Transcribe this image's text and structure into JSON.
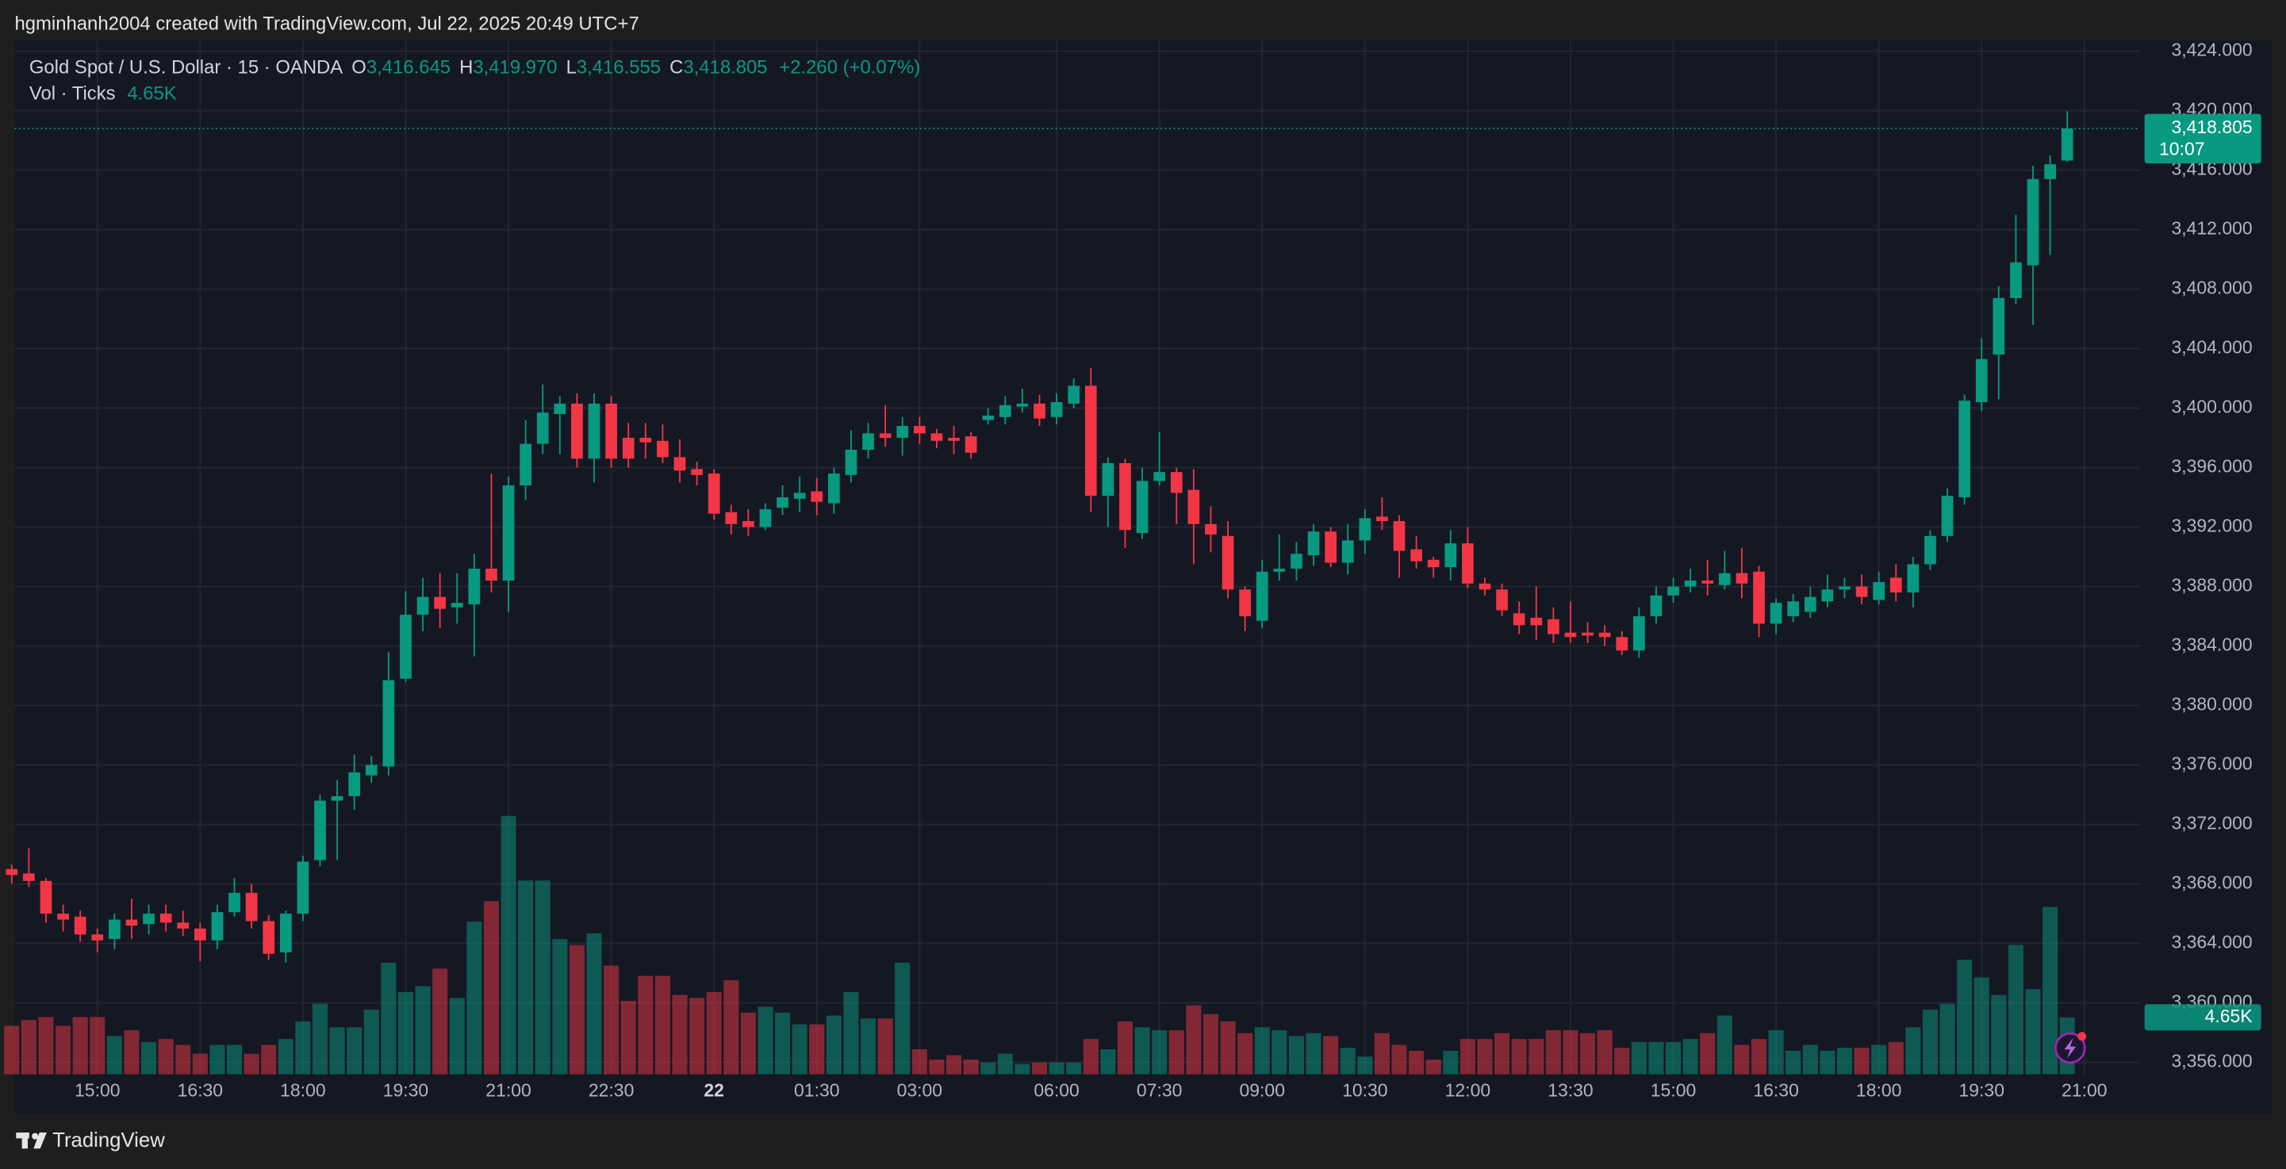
{
  "header": {
    "attribution": "hgminhanh2004 created with TradingView.com, Jul 22, 2025 20:49 UTC+7"
  },
  "footer": {
    "brand": "TradingView"
  },
  "chart_data": {
    "type": "candlestick",
    "title": "Gold Spot / U.S. Dollar · 15 · OANDA",
    "ohlc_legend": {
      "open_label": "O",
      "open": "3,416.645",
      "high_label": "H",
      "high": "3,419.970",
      "low_label": "L",
      "low": "3,416.555",
      "close_label": "C",
      "close": "3,418.805",
      "change": "+2.260 (+0.07%)"
    },
    "countdown": "10:07",
    "categories": [
      null,
      null,
      null,
      null,
      null,
      "15:00",
      null,
      null,
      null,
      null,
      null,
      "16:30",
      null,
      null,
      null,
      null,
      null,
      "18:00",
      null,
      null,
      null,
      null,
      null,
      "19:30",
      null,
      null,
      null,
      null,
      null,
      "21:00",
      null,
      null,
      null,
      null,
      null,
      "22:30",
      null,
      null,
      null,
      null,
      null,
      "22",
      null,
      null,
      null,
      null,
      null,
      "01:30",
      null,
      null,
      null,
      null,
      null,
      "03:00",
      null,
      null,
      null,
      null,
      null,
      null,
      null,
      "06:00",
      null,
      null,
      null,
      null,
      null,
      "07:30",
      null,
      null,
      null,
      null,
      null,
      "09:00",
      null,
      null,
      null,
      null,
      null,
      "10:30",
      null,
      null,
      null,
      null,
      null,
      "12:00",
      null,
      null,
      null,
      null,
      null,
      "13:30",
      null,
      null,
      null,
      null,
      null,
      "15:00",
      null,
      null,
      null,
      null,
      null,
      "16:30",
      null,
      null,
      null,
      null,
      null,
      "18:00",
      null,
      null,
      null,
      null,
      null,
      "19:30",
      null,
      null,
      null,
      null,
      null,
      "21:00"
    ],
    "open": [
      3369.0,
      3368.7,
      3368.2,
      3366.0,
      3365.8,
      3364.6,
      3364.3,
      3365.6,
      3365.3,
      3366.0,
      3365.4,
      3365.0,
      3364.2,
      3366.1,
      3367.4,
      3365.5,
      3363.4,
      3366.0,
      3369.6,
      3373.6,
      3373.9,
      3375.3,
      3375.9,
      3381.8,
      3386.1,
      3387.3,
      3386.6,
      3386.8,
      3389.2,
      3388.4,
      3394.8,
      3397.6,
      3399.6,
      3400.3,
      3396.6,
      3400.3,
      3398.0,
      3398.0,
      3397.8,
      3396.7,
      3395.9,
      3395.6,
      3393.0,
      3392.4,
      3392.0,
      3393.3,
      3393.9,
      3394.4,
      3393.6,
      3395.5,
      3397.2,
      3398.3,
      3398.0,
      3398.8,
      3398.3,
      3398.0,
      3398.1,
      3399.2,
      3399.4,
      3400.1,
      3400.3,
      3399.4,
      3400.3,
      3401.5,
      3394.1,
      3396.3,
      3391.6,
      3395.1,
      3395.7,
      3394.5,
      3392.2,
      3391.4,
      3387.8,
      3385.7,
      3389.0,
      3389.2,
      3390.1,
      3391.7,
      3389.6,
      3391.1,
      3392.7,
      3392.4,
      3390.5,
      3389.8,
      3389.3,
      3390.9,
      3388.2,
      3387.8,
      3386.2,
      3385.9,
      3385.8,
      3384.9,
      3384.9,
      3384.9,
      3384.6,
      3383.7,
      3386.0,
      3387.4,
      3388.0,
      3388.4,
      3388.1,
      3388.9,
      3389.0,
      3385.5,
      3386.0,
      3386.3,
      3387.0,
      3387.8,
      3388.0,
      3387.1,
      3388.6,
      3387.6,
      3389.5,
      3391.4,
      3394.0,
      3400.4,
      3403.6,
      3407.4,
      3409.6,
      3415.4,
      3416.645,
      null
    ],
    "high": [
      3369.3,
      3370.4,
      3368.4,
      3366.6,
      3366.2,
      3365.0,
      3366.0,
      3367.0,
      3366.6,
      3366.6,
      3366.2,
      3365.4,
      3366.6,
      3368.4,
      3368.0,
      3365.9,
      3366.2,
      3369.9,
      3374.0,
      3375.0,
      3376.7,
      3376.6,
      3383.6,
      3387.7,
      3388.6,
      3388.9,
      3388.9,
      3390.2,
      3395.6,
      3395.4,
      3399.2,
      3401.6,
      3400.8,
      3401.0,
      3401.0,
      3400.8,
      3399.0,
      3399.0,
      3398.9,
      3397.9,
      3396.4,
      3395.9,
      3393.5,
      3393.2,
      3393.6,
      3394.8,
      3395.4,
      3395.3,
      3396.0,
      3398.5,
      3399.0,
      3400.2,
      3399.4,
      3399.4,
      3398.6,
      3398.8,
      3398.4,
      3400.0,
      3400.8,
      3401.3,
      3400.9,
      3401.0,
      3402.0,
      3402.7,
      3396.7,
      3396.6,
      3396.0,
      3398.4,
      3396.0,
      3395.9,
      3393.4,
      3392.4,
      3388.0,
      3389.8,
      3391.5,
      3391.0,
      3392.2,
      3392.0,
      3392.2,
      3393.2,
      3394.0,
      3392.8,
      3391.4,
      3390.0,
      3391.8,
      3392.0,
      3388.6,
      3388.2,
      3387.0,
      3388.0,
      3386.6,
      3387.0,
      3385.6,
      3385.4,
      3385.0,
      3386.6,
      3388.0,
      3388.6,
      3389.2,
      3389.8,
      3390.4,
      3390.6,
      3389.4,
      3387.2,
      3387.5,
      3388.0,
      3388.8,
      3388.6,
      3388.8,
      3389.0,
      3389.5,
      3390.0,
      3391.8,
      3394.6,
      3400.9,
      3404.7,
      3408.2,
      3413.0,
      3416.3,
      3417.0,
      3419.97,
      null
    ],
    "low": [
      3368.0,
      3367.8,
      3365.4,
      3364.8,
      3364.1,
      3363.4,
      3363.6,
      3364.3,
      3364.6,
      3364.8,
      3364.5,
      3362.8,
      3363.6,
      3365.8,
      3365.0,
      3362.9,
      3362.7,
      3365.5,
      3369.2,
      3369.6,
      3373.0,
      3374.8,
      3375.3,
      3381.6,
      3385.0,
      3385.2,
      3385.5,
      3383.3,
      3387.6,
      3386.3,
      3393.8,
      3396.9,
      3396.9,
      3396.0,
      3395.0,
      3396.0,
      3396.0,
      3396.6,
      3396.3,
      3395.0,
      3394.8,
      3392.5,
      3391.5,
      3391.4,
      3391.8,
      3392.8,
      3393.0,
      3392.8,
      3392.9,
      3395.0,
      3396.6,
      3397.4,
      3396.8,
      3397.6,
      3397.3,
      3396.9,
      3396.6,
      3398.9,
      3398.9,
      3399.7,
      3398.8,
      3398.9,
      3400.0,
      3393.0,
      3392.0,
      3390.6,
      3391.2,
      3394.8,
      3392.2,
      3389.5,
      3390.3,
      3387.2,
      3385.0,
      3385.2,
      3388.4,
      3388.4,
      3389.4,
      3389.3,
      3388.8,
      3390.2,
      3391.8,
      3388.6,
      3389.2,
      3388.6,
      3388.4,
      3387.9,
      3387.4,
      3386.0,
      3384.8,
      3384.4,
      3384.2,
      3384.2,
      3384.2,
      3384.0,
      3383.4,
      3383.2,
      3385.5,
      3386.9,
      3387.6,
      3387.4,
      3387.8,
      3387.2,
      3384.6,
      3384.8,
      3385.6,
      3385.9,
      3386.6,
      3387.2,
      3386.8,
      3386.8,
      3387.0,
      3386.6,
      3389.1,
      3391.0,
      3393.5,
      3399.8,
      3400.6,
      3407.0,
      3405.6,
      3410.3,
      3416.555,
      null
    ],
    "close": [
      3368.6,
      3368.2,
      3366.0,
      3365.6,
      3364.6,
      3364.2,
      3365.6,
      3365.2,
      3366.0,
      3365.4,
      3365.0,
      3364.2,
      3366.1,
      3367.4,
      3365.5,
      3363.3,
      3366.0,
      3369.5,
      3373.6,
      3373.9,
      3375.5,
      3376.0,
      3381.7,
      3386.1,
      3387.3,
      3386.5,
      3386.9,
      3389.2,
      3388.4,
      3394.8,
      3397.6,
      3399.7,
      3400.3,
      3396.6,
      3400.3,
      3396.6,
      3396.6,
      3397.7,
      3396.7,
      3395.8,
      3395.5,
      3392.9,
      3392.2,
      3392.0,
      3393.2,
      3394.0,
      3394.3,
      3393.7,
      3395.6,
      3397.2,
      3398.3,
      3398.0,
      3398.8,
      3398.3,
      3397.8,
      3397.8,
      3397.0,
      3399.5,
      3400.2,
      3400.3,
      3399.3,
      3400.4,
      3401.5,
      3394.1,
      3396.3,
      3391.8,
      3395.1,
      3395.7,
      3394.3,
      3392.2,
      3391.5,
      3387.8,
      3386.0,
      3389.0,
      3389.2,
      3390.2,
      3391.7,
      3389.6,
      3391.1,
      3392.6,
      3392.4,
      3390.4,
      3389.7,
      3389.3,
      3390.9,
      3388.2,
      3387.8,
      3386.4,
      3385.4,
      3385.4,
      3384.8,
      3384.6,
      3384.7,
      3384.6,
      3383.7,
      3386.0,
      3387.4,
      3388.0,
      3388.4,
      3388.2,
      3388.9,
      3388.2,
      3385.5,
      3386.9,
      3387.0,
      3387.3,
      3387.8,
      3388.0,
      3387.3,
      3388.3,
      3387.6,
      3389.5,
      3391.4,
      3394.1,
      3400.5,
      3403.3,
      3407.4,
      3409.8,
      3415.4,
      3416.4,
      3418.805,
      null
    ],
    "up_color": "#089981",
    "down_color": "#f23645",
    "volume": {
      "name": "Vol · Ticks",
      "values": [
        3960,
        4440,
        4680,
        3960,
        4680,
        4680,
        3120,
        3600,
        2640,
        2880,
        2400,
        1680,
        2400,
        2400,
        1680,
        2400,
        2880,
        4320,
        5760,
        3840,
        3840,
        5280,
        9120,
        6720,
        7200,
        8640,
        6240,
        12480,
        14160,
        21120,
        15840,
        15840,
        11040,
        10560,
        11520,
        8880,
        6000,
        8040,
        8040,
        6480,
        6240,
        6720,
        7680,
        5040,
        5520,
        5040,
        4080,
        4080,
        4800,
        6720,
        4560,
        4560,
        9120,
        2040,
        1200,
        1560,
        1200,
        960,
        1680,
        840,
        960,
        960,
        960,
        2880,
        2040,
        4320,
        3840,
        3600,
        3600,
        5640,
        4920,
        4320,
        3360,
        3840,
        3600,
        3120,
        3360,
        3120,
        2160,
        1440,
        3360,
        2400,
        1920,
        1200,
        1920,
        2880,
        2880,
        3360,
        2880,
        2880,
        3600,
        3600,
        3360,
        3600,
        2160,
        2640,
        2640,
        2640,
        2880,
        3360,
        4800,
        2400,
        2880,
        3600,
        1920,
        2400,
        1920,
        2160,
        2160,
        2400,
        2640,
        3840,
        5280,
        5760,
        9360,
        7920,
        6480,
        10560,
        6960,
        13680,
        4650,
        null
      ],
      "value_labels": [
        null,
        null,
        null,
        null,
        null,
        null,
        null,
        null,
        null,
        null,
        null,
        null,
        null,
        null,
        null,
        null,
        null,
        null,
        null,
        null,
        null,
        null,
        null,
        null,
        null,
        null,
        null,
        null,
        null,
        null,
        null,
        null,
        null,
        null,
        null,
        null,
        null,
        null,
        null,
        null,
        null,
        null,
        null,
        null,
        null,
        null,
        null,
        null,
        null,
        null,
        null,
        null,
        null,
        null,
        null,
        null,
        null,
        null,
        null,
        null,
        null,
        null,
        null,
        null,
        null,
        null,
        null,
        null,
        null,
        null,
        null,
        null,
        null,
        null,
        null,
        null,
        null,
        null,
        null,
        null,
        null,
        null,
        null,
        null,
        null,
        null,
        null,
        null,
        null,
        null,
        null,
        null,
        null,
        null,
        null,
        null,
        null,
        null,
        null,
        null,
        null,
        null,
        null,
        null,
        null,
        null,
        null,
        null,
        null,
        null,
        null,
        null,
        null,
        null,
        null,
        null,
        null,
        null,
        null,
        null,
        "4.65K",
        null
      ]
    },
    "ylim": [
      3355.2,
      3424.7
    ],
    "yticks": [
      {
        "value": 3356,
        "label": "3,356.000"
      },
      {
        "value": 3360,
        "label": "3,360.000"
      },
      {
        "value": 3364,
        "label": "3,364.000"
      },
      {
        "value": 3368,
        "label": "3,368.000"
      },
      {
        "value": 3372,
        "label": "3,372.000"
      },
      {
        "value": 3376,
        "label": "3,376.000"
      },
      {
        "value": 3380,
        "label": "3,380.000"
      },
      {
        "value": 3384,
        "label": "3,384.000"
      },
      {
        "value": 3388,
        "label": "3,388.000"
      },
      {
        "value": 3392,
        "label": "3,392.000"
      },
      {
        "value": 3396,
        "label": "3,396.000"
      },
      {
        "value": 3400,
        "label": "3,400.000"
      },
      {
        "value": 3404,
        "label": "3,404.000"
      },
      {
        "value": 3408,
        "label": "3,408.000"
      },
      {
        "value": 3412,
        "label": "3,412.000"
      },
      {
        "value": 3416,
        "label": "3,416.000"
      },
      {
        "value": 3420,
        "label": "3,420.000"
      },
      {
        "value": 3424,
        "label": "3,424.000"
      }
    ],
    "grid": true,
    "last_price_line": true
  }
}
